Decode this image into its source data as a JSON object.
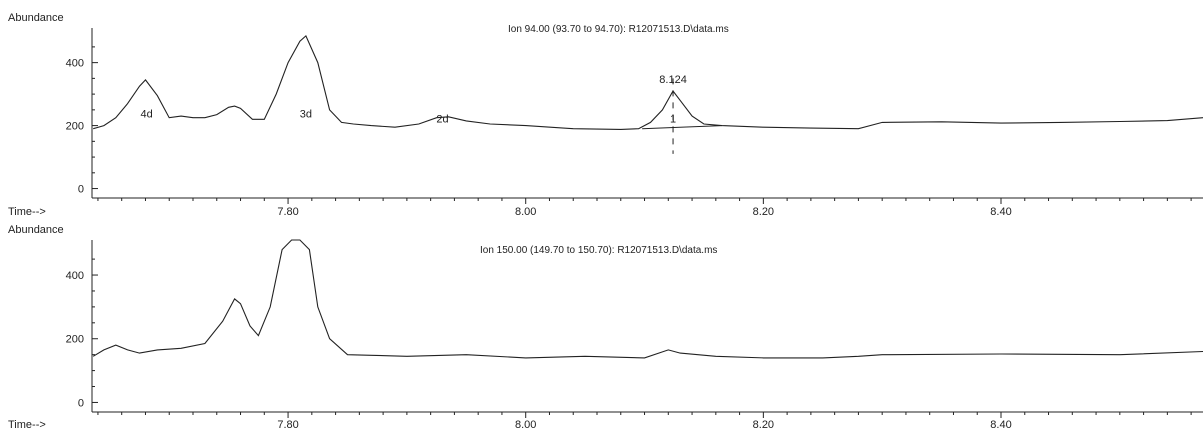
{
  "chart_data": [
    {
      "type": "line",
      "title": "Ion 94.00 (93.70 to 94.70): R12071513.D\\data.ms",
      "ylabel": "Abundance",
      "xlabel": "Time-->",
      "xlim": [
        7.635,
        8.57
      ],
      "ylim": [
        -30,
        510
      ],
      "xticks": [
        {
          "value": 7.8,
          "label": "7.80"
        },
        {
          "value": 8.0,
          "label": "8.00"
        },
        {
          "value": 8.2,
          "label": "8.20"
        },
        {
          "value": 8.4,
          "label": "8.40"
        }
      ],
      "yticks": [
        {
          "value": 0,
          "label": "0"
        },
        {
          "value": 200,
          "label": "200"
        },
        {
          "value": 400,
          "label": "400"
        }
      ],
      "series": [
        {
          "x": [
            7.636,
            7.645,
            7.655,
            7.665,
            7.675,
            7.68,
            7.69,
            7.7,
            7.71,
            7.72,
            7.73,
            7.74,
            7.75,
            7.755,
            7.76,
            7.77,
            7.78,
            7.79,
            7.8,
            7.81,
            7.815,
            7.825,
            7.835,
            7.845,
            7.855,
            7.87,
            7.89,
            7.91,
            7.925,
            7.935,
            7.95,
            7.97,
            8.0,
            8.04,
            8.08,
            8.095,
            8.105,
            8.115,
            8.124,
            8.13,
            8.14,
            8.15,
            8.165,
            8.2,
            8.24,
            8.28,
            8.3,
            8.35,
            8.4,
            8.45,
            8.5,
            8.54,
            8.57
          ],
          "y": [
            190,
            200,
            225,
            270,
            325,
            345,
            295,
            225,
            230,
            225,
            225,
            235,
            258,
            262,
            255,
            220,
            220,
            300,
            400,
            468,
            485,
            400,
            250,
            210,
            205,
            200,
            195,
            205,
            225,
            228,
            215,
            205,
            200,
            190,
            188,
            190,
            210,
            250,
            310,
            280,
            230,
            205,
            200,
            195,
            192,
            190,
            210,
            212,
            208,
            210,
            213,
            216,
            225
          ]
        }
      ],
      "annotations": [
        {
          "text": "4d",
          "x": 7.681,
          "y": 225
        },
        {
          "text": "3d",
          "x": 7.815,
          "y": 225
        },
        {
          "text": "2d",
          "x": 7.93,
          "y": 210
        },
        {
          "text": "1",
          "x": 8.124,
          "y": 210
        },
        {
          "text": "8.124",
          "x": 8.124,
          "y": 335
        }
      ],
      "integration_baseline": [
        [
          8.098,
          190
        ],
        [
          8.165,
          200
        ]
      ],
      "marker_x": 8.124
    },
    {
      "type": "line",
      "title": "Ion 150.00 (149.70 to 150.70): R12071513.D\\data.ms",
      "ylabel": "Abundance",
      "xlabel": "Time-->",
      "xlim": [
        7.635,
        8.57
      ],
      "ylim": [
        -30,
        510
      ],
      "xticks": [
        {
          "value": 7.8,
          "label": "7.80"
        },
        {
          "value": 8.0,
          "label": "8.00"
        },
        {
          "value": 8.2,
          "label": "8.20"
        },
        {
          "value": 8.4,
          "label": "8.40"
        }
      ],
      "yticks": [
        {
          "value": 0,
          "label": "0"
        },
        {
          "value": 200,
          "label": "200"
        },
        {
          "value": 400,
          "label": "400"
        }
      ],
      "series": [
        {
          "x": [
            7.636,
            7.645,
            7.655,
            7.665,
            7.675,
            7.69,
            7.71,
            7.73,
            7.745,
            7.755,
            7.76,
            7.768,
            7.775,
            7.785,
            7.795,
            7.803,
            7.81,
            7.818,
            7.825,
            7.835,
            7.85,
            7.87,
            7.9,
            7.95,
            8.0,
            8.05,
            8.1,
            8.12,
            8.13,
            8.16,
            8.2,
            8.25,
            8.28,
            8.3,
            8.4,
            8.5,
            8.57
          ],
          "y": [
            145,
            165,
            180,
            165,
            155,
            165,
            170,
            185,
            255,
            325,
            310,
            240,
            210,
            300,
            480,
            510,
            510,
            480,
            300,
            200,
            150,
            148,
            145,
            150,
            140,
            145,
            140,
            165,
            155,
            145,
            140,
            140,
            145,
            150,
            152,
            150,
            160
          ]
        }
      ]
    }
  ]
}
